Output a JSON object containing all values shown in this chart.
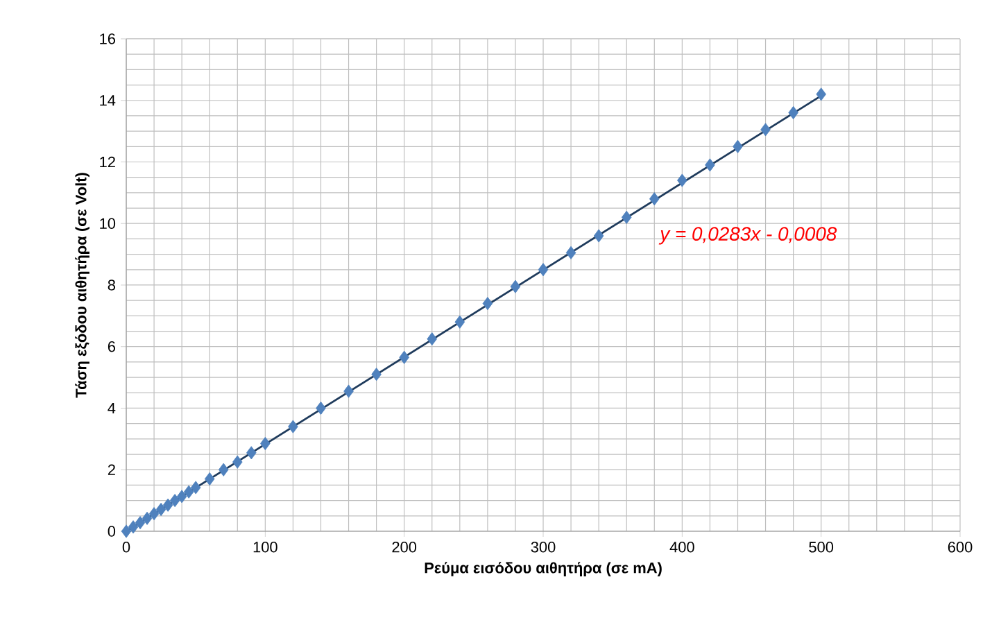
{
  "chart_data": {
    "type": "scatter",
    "xlabel": "Ρεύμα εισόδου αιθητήρα (σε mA)",
    "ylabel": "Τάση εξόδου αιθητήρα (σε Volt)",
    "xlim": [
      0,
      600
    ],
    "xticks": [
      0,
      100,
      200,
      300,
      400,
      500,
      600
    ],
    "ylim": [
      0,
      16
    ],
    "yticks": [
      0,
      2,
      4,
      6,
      8,
      10,
      12,
      14,
      16
    ],
    "grid": true,
    "series": [
      {
        "marker": "diamond",
        "color": "#4f81bd",
        "x": [
          0,
          5,
          10,
          15,
          20,
          25,
          30,
          35,
          40,
          45,
          50,
          60,
          70,
          80,
          90,
          100,
          120,
          140,
          160,
          180,
          200,
          220,
          240,
          260,
          280,
          300,
          320,
          340,
          360,
          380,
          400,
          420,
          440,
          460,
          480,
          500
        ],
        "values": [
          0,
          0.14,
          0.28,
          0.42,
          0.57,
          0.71,
          0.85,
          1.0,
          1.13,
          1.28,
          1.42,
          1.7,
          2.0,
          2.25,
          2.55,
          2.85,
          3.4,
          4.0,
          4.55,
          5.1,
          5.65,
          6.25,
          6.8,
          7.4,
          7.95,
          8.5,
          9.05,
          9.6,
          10.2,
          10.8,
          11.4,
          11.9,
          12.5,
          13.05,
          13.6,
          14.2
        ]
      },
      {
        "type": "line",
        "marker": "none",
        "color": "#1f3b5c",
        "x": [
          0,
          500
        ],
        "values": [
          0,
          14.15
        ]
      }
    ],
    "annotations": [
      "y = 0,0283x - 0,0008"
    ]
  }
}
